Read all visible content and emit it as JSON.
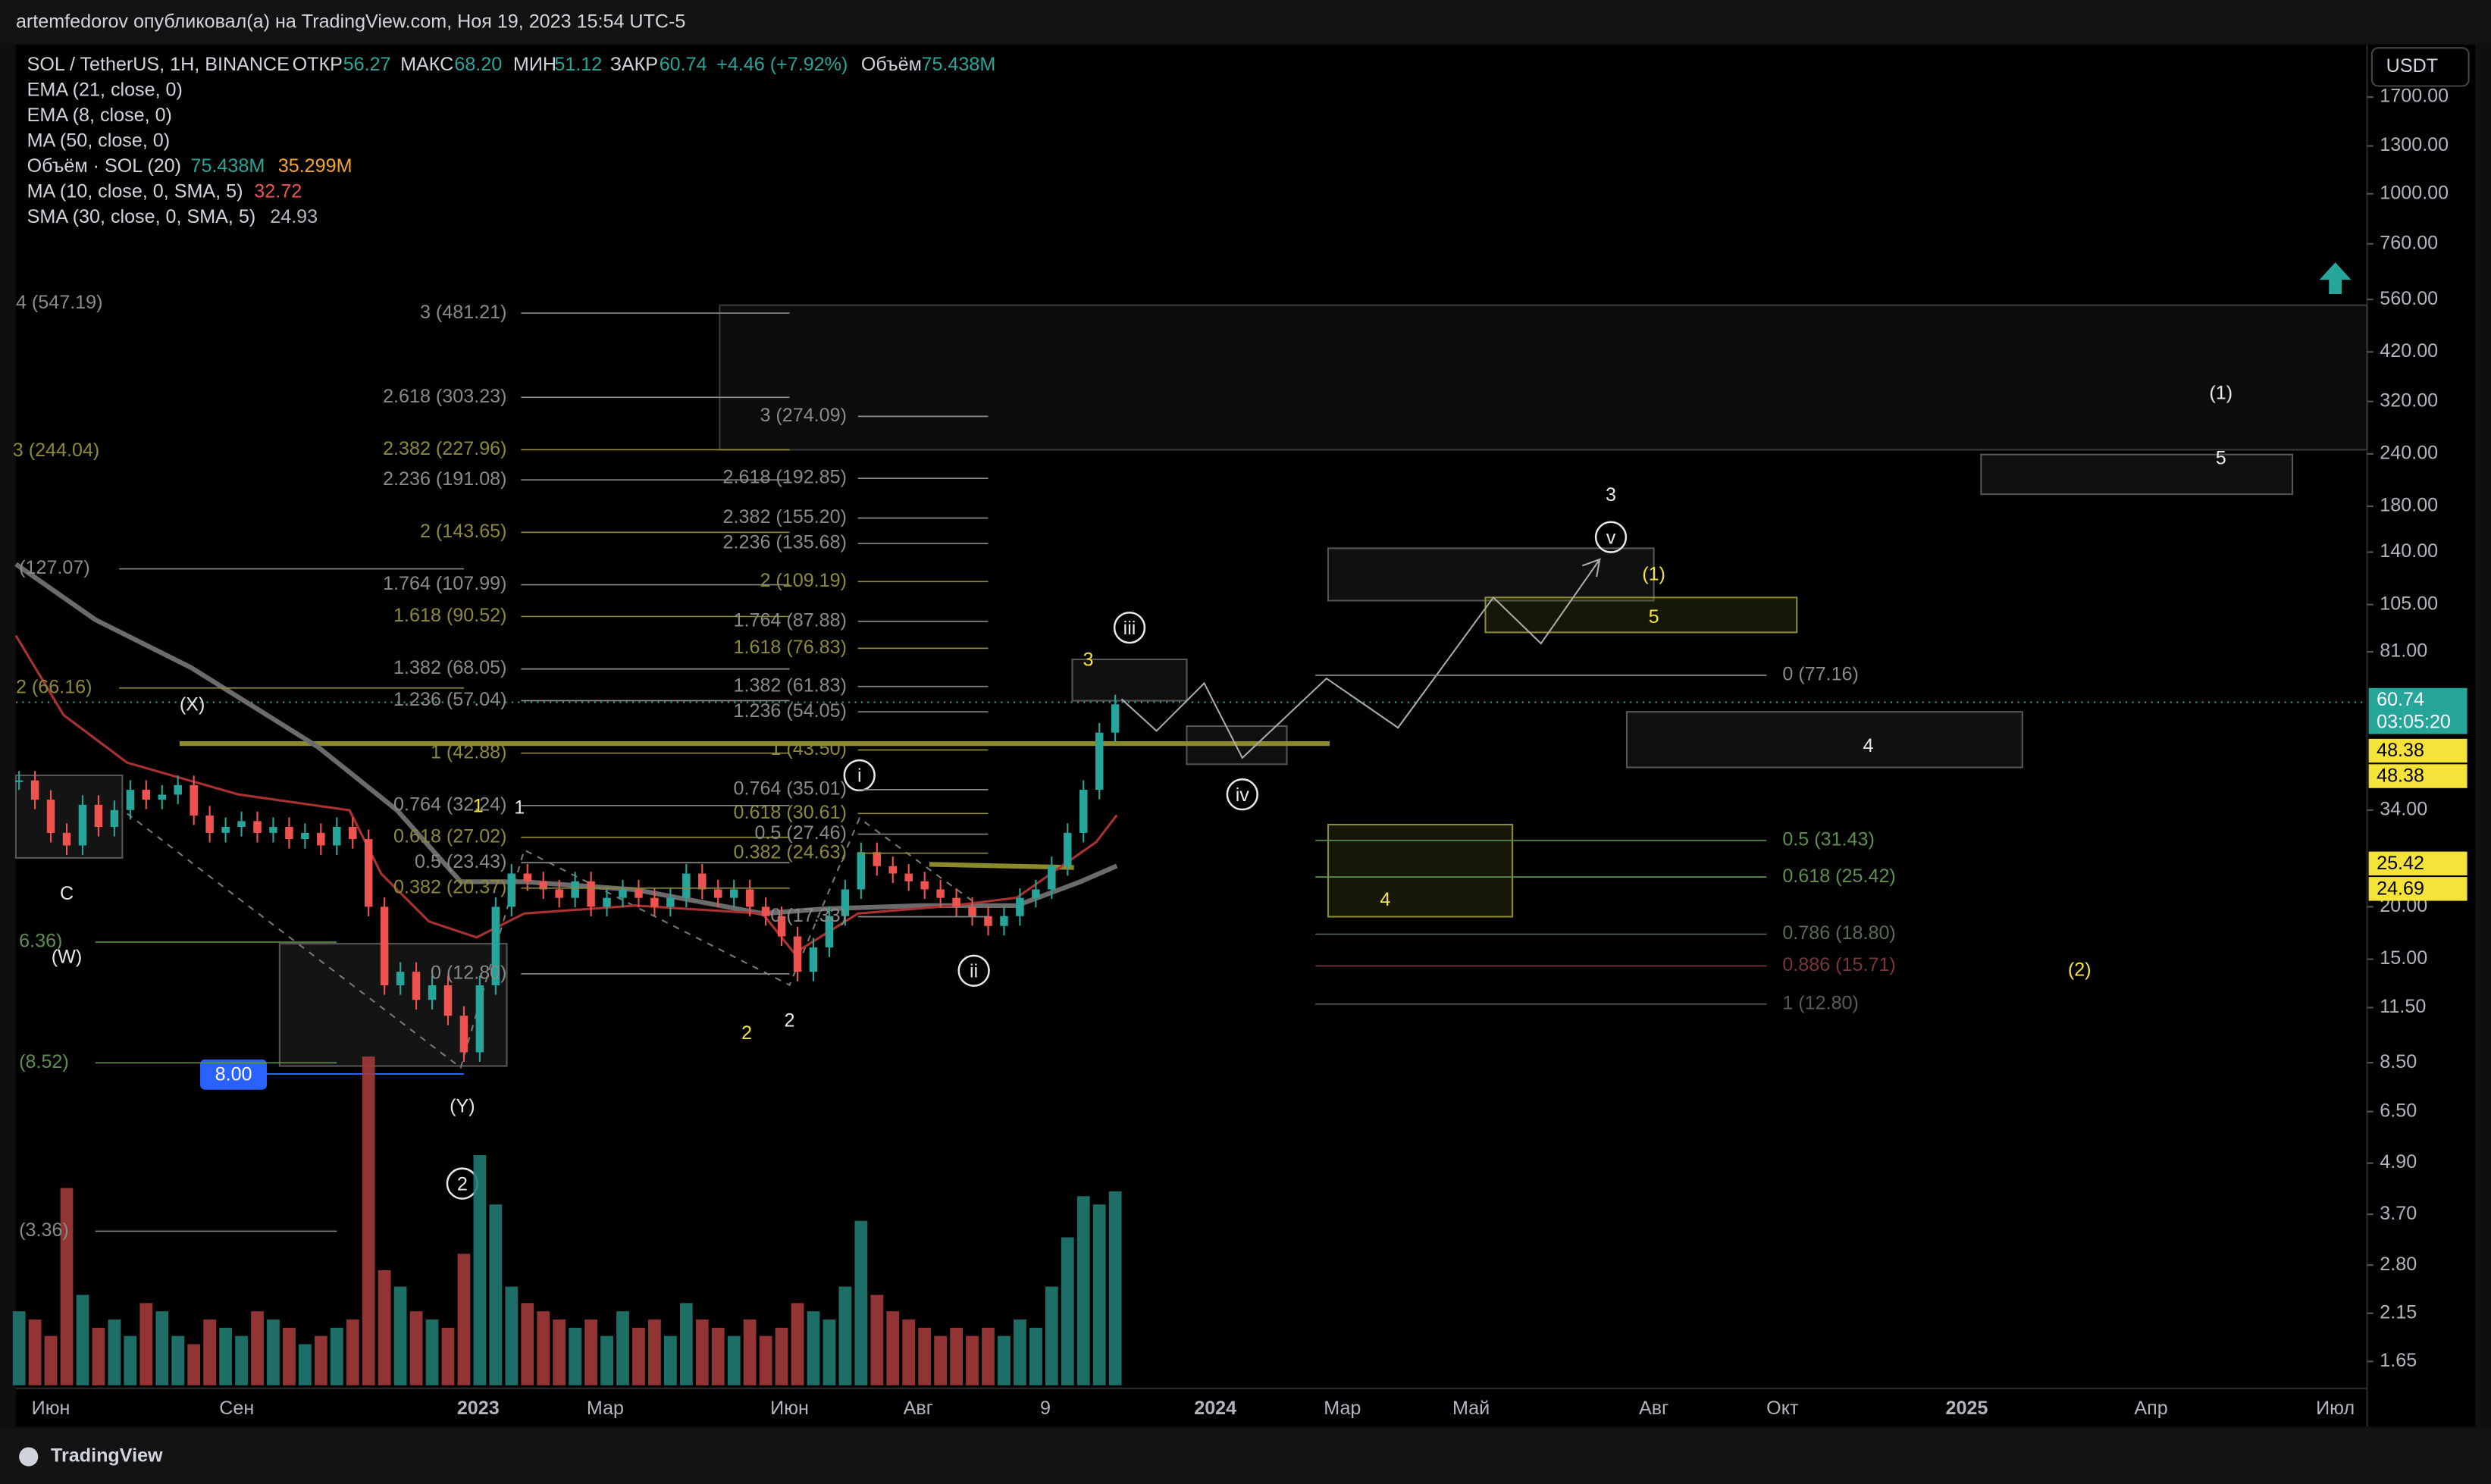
{
  "header": "artemfedorov опубликовал(а) на TradingView.com, Ноя 19, 2023 15:54 UTC-5",
  "legend": {
    "symbol": "SOL / TetherUS, 1H, BINANCE",
    "open_label": "ОТКР",
    "open": "56.27",
    "high_label": "МАКС",
    "high": "68.20",
    "low_label": "МИН",
    "low": "51.12",
    "close_label": "ЗАКР",
    "close": "60.74",
    "change": "+4.46 (+7.92%)",
    "volume_label": "Объём",
    "volume": "75.438M"
  },
  "indicators": [
    {
      "name": "EMA (21, close, 0)"
    },
    {
      "name": "EMA (8, close, 0)"
    },
    {
      "name": "MA (50, close, 0)"
    },
    {
      "name": "Объём · SOL (20)",
      "values": [
        "75.438M",
        "35.299M"
      ]
    },
    {
      "name": "MA (10, close, 0, SMA, 5)",
      "values": [
        "32.72"
      ]
    },
    {
      "name": "SMA (30, close, 0, SMA, 5)",
      "values": [
        "24.93"
      ]
    }
  ],
  "currency": "USDT",
  "price_axis": {
    "log": true,
    "ylim": [
      1.448,
      2266
    ],
    "ticks": [
      {
        "value": 1700,
        "label": "1700.00"
      },
      {
        "value": 1300,
        "label": "1300.00"
      },
      {
        "value": 1000,
        "label": "1000.00"
      },
      {
        "value": 760,
        "label": "760.00"
      },
      {
        "value": 560,
        "label": "560.00"
      },
      {
        "value": 420,
        "label": "420.00"
      },
      {
        "value": 320,
        "label": "320.00"
      },
      {
        "value": 240,
        "label": "240.00"
      },
      {
        "value": 180,
        "label": "180.00"
      },
      {
        "value": 140,
        "label": "140.00"
      },
      {
        "value": 105,
        "label": "105.00"
      },
      {
        "value": 81,
        "label": "81.00"
      },
      {
        "value": 34,
        "label": "34.00"
      },
      {
        "value": 20,
        "label": "20.00"
      },
      {
        "value": 15,
        "label": "15.00"
      },
      {
        "value": 11.5,
        "label": "11.50"
      },
      {
        "value": 8.5,
        "label": "8.50"
      },
      {
        "value": 6.5,
        "label": "6.50"
      },
      {
        "value": 4.9,
        "label": "4.90"
      },
      {
        "value": 3.7,
        "label": "3.70"
      },
      {
        "value": 2.8,
        "label": "2.80"
      },
      {
        "value": 2.15,
        "label": "2.15"
      },
      {
        "value": 1.65,
        "label": "1.65"
      }
    ],
    "tags": [
      {
        "value": 60.74,
        "label": "60.74",
        "sub": "03:05:20"
      },
      {
        "value": 48.38,
        "label": "48.38"
      },
      {
        "value": 48.38,
        "label": "48.38"
      },
      {
        "value": 25.42,
        "label": "25.42"
      },
      {
        "value": 24.69,
        "label": "24.69"
      }
    ]
  },
  "time_axis": [
    "Июн",
    "Сен",
    "2023",
    "Мар",
    "Июн",
    "Авг",
    "9",
    "2024",
    "Мар",
    "Май",
    "Авг",
    "Окт",
    "2025",
    "Апр",
    "Июл"
  ],
  "low_tag": {
    "value": 8,
    "label": "8.00"
  },
  "price_series": {
    "values": [
      40,
      36,
      30,
      28,
      35,
      31,
      34,
      38,
      36,
      37,
      39,
      33,
      30,
      31,
      32,
      30,
      31,
      29,
      30,
      28,
      31,
      29,
      20,
      13,
      14,
      12,
      13,
      11,
      9,
      13,
      20,
      24,
      23,
      22,
      21,
      23,
      20,
      21,
      22,
      21,
      20,
      21,
      24,
      22,
      21,
      22,
      20,
      19,
      17,
      14,
      16,
      19,
      22,
      27,
      25,
      24,
      23,
      22,
      21,
      20,
      19,
      18,
      19,
      21,
      22,
      25,
      30,
      38,
      52,
      60.74
    ]
  },
  "volume_series": {
    "values": [
      45,
      40,
      30,
      120,
      55,
      35,
      40,
      30,
      50,
      45,
      30,
      25,
      40,
      35,
      30,
      45,
      40,
      35,
      25,
      30,
      35,
      40,
      200,
      70,
      60,
      45,
      40,
      35,
      80,
      140,
      110,
      60,
      50,
      45,
      40,
      35,
      40,
      30,
      45,
      35,
      40,
      30,
      50,
      40,
      35,
      30,
      40,
      30,
      35,
      50,
      45,
      40,
      60,
      100,
      55,
      45,
      40,
      35,
      30,
      35,
      30,
      35,
      30,
      40,
      35,
      60,
      90,
      115,
      110,
      118
    ]
  },
  "fib_labels": [
    "4 (547.19)",
    "3 (244.04)",
    "(127.07)",
    "2 (66.16)",
    "6.36)",
    "(8.52)",
    "(3.36)",
    "3 (481.21)",
    "2.618 (303.23)",
    "2.382 (227.96)",
    "2.236 (191.08)",
    "2 (143.65)",
    "1.764 (107.99)",
    "1.618 (90.52)",
    "1.382 (68.05)",
    "1.236 (57.04)",
    "1 (42.88)",
    "0.764 (32.24)",
    "0.618 (27.02)",
    "0.5 (23.43)",
    "0.382 (20.37)",
    "0 (12.80)",
    "3 (274.09)",
    "2.618 (192.85)",
    "2.382 (155.20)",
    "2.236 (135.68)",
    "2 (109.19)",
    "1.764 (87.88)",
    "1.618 (76.83)",
    "1.382 (61.83)",
    "1.236 (54.05)",
    "1 (43.50)",
    "0.764 (35.01)",
    "0.618 (30.61)",
    "0.5 (27.46)",
    "0.382 (24.63)",
    "0 (17.33)",
    "0 (77.16)",
    "0.5 (31.43)",
    "0.618 (25.42)",
    "0.786 (18.80)",
    "0.886 (15.71)",
    "1 (12.80)"
  ],
  "wave_labels": [
    "(X)",
    "C",
    "(W)",
    "(Y)",
    "2",
    "1",
    "1",
    "2",
    "2",
    "i",
    "ii",
    "3",
    "iii",
    "iv",
    "v",
    "3",
    "(1)",
    "5",
    "4",
    "4",
    "(1)",
    "5",
    "(2)"
  ],
  "footer": "TradingView"
}
